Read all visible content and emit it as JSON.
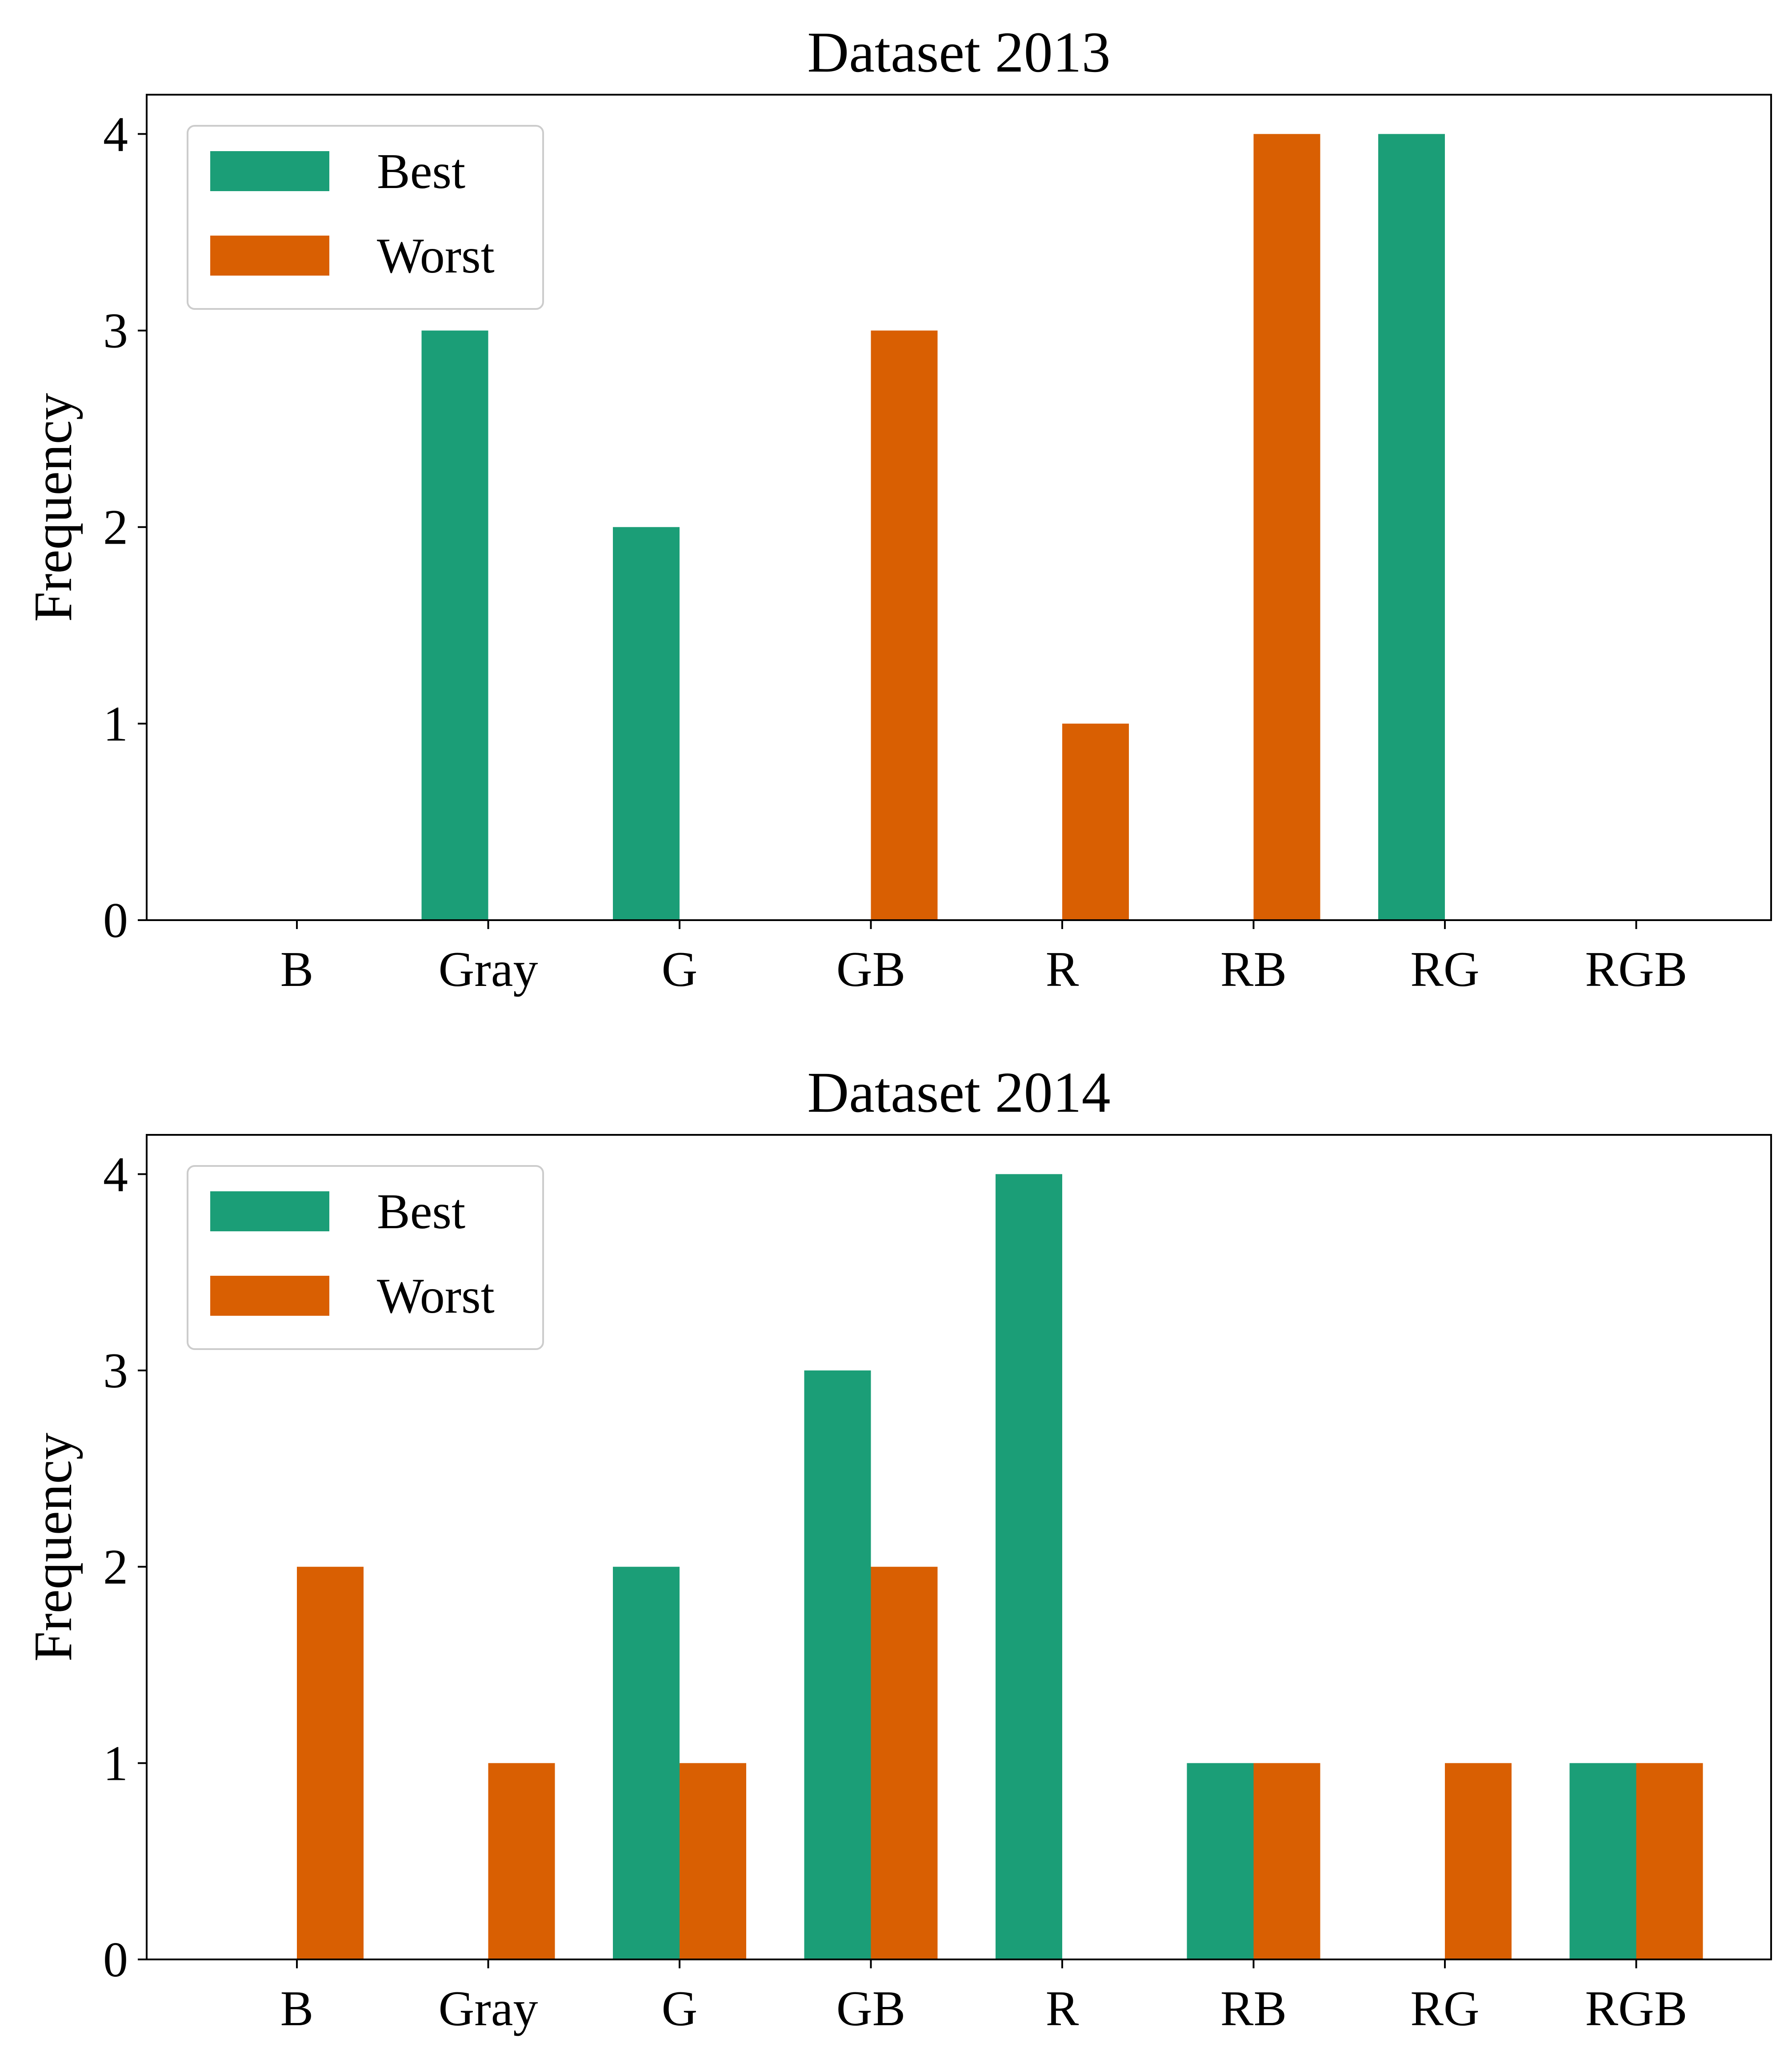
{
  "chart_data": [
    {
      "type": "bar",
      "title": "Dataset 2013",
      "xlabel": "",
      "ylabel": "Frequency",
      "ylim": [
        0,
        4.2
      ],
      "yticks": [
        "0",
        "1",
        "2",
        "3",
        "4"
      ],
      "categories": [
        "B",
        "Gray",
        "G",
        "GB",
        "R",
        "RB",
        "RG",
        "RGB"
      ],
      "series": [
        {
          "name": "Best",
          "color": "#1b9e77",
          "values": [
            0,
            3,
            2,
            0,
            0,
            0,
            4,
            0
          ]
        },
        {
          "name": "Worst",
          "color": "#d95f02",
          "values": [
            0,
            0,
            0,
            3,
            1,
            4,
            0,
            0
          ]
        }
      ],
      "legend": "top-left",
      "grid": false
    },
    {
      "type": "bar",
      "title": "Dataset 2014",
      "xlabel": "",
      "ylabel": "Frequency",
      "ylim": [
        0,
        4.2
      ],
      "yticks": [
        "0",
        "1",
        "2",
        "3",
        "4"
      ],
      "categories": [
        "B",
        "Gray",
        "G",
        "GB",
        "R",
        "RB",
        "RG",
        "RGB"
      ],
      "series": [
        {
          "name": "Best",
          "color": "#1b9e77",
          "values": [
            0,
            0,
            2,
            3,
            4,
            1,
            0,
            1
          ]
        },
        {
          "name": "Worst",
          "color": "#d95f02",
          "values": [
            2,
            1,
            1,
            2,
            0,
            1,
            1,
            1
          ]
        }
      ],
      "legend": "top-left",
      "grid": false
    }
  ]
}
